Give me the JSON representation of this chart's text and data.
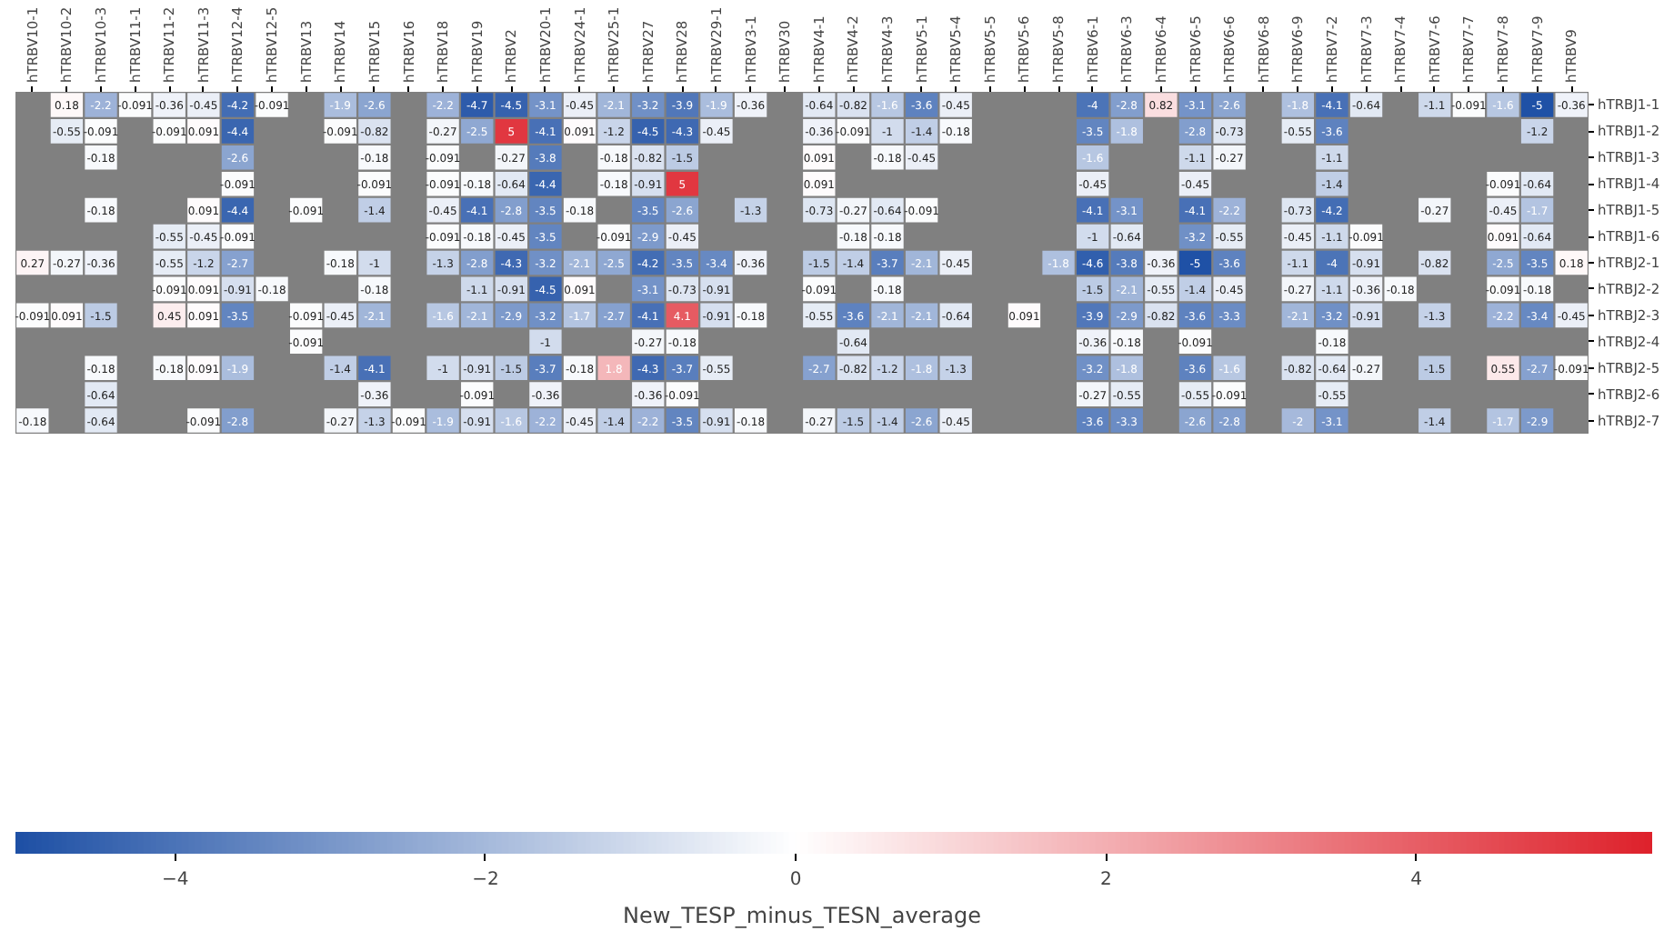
{
  "chart_data": {
    "type": "heatmap",
    "clabel": "New_TESP_minus_TESN_average",
    "categories": [
      "hTRBV10-1",
      "hTRBV10-2",
      "hTRBV10-3",
      "hTRBV11-1",
      "hTRBV11-2",
      "hTRBV11-3",
      "hTRBV12-4",
      "hTRBV12-5",
      "hTRBV13",
      "hTRBV14",
      "hTRBV15",
      "hTRBV16",
      "hTRBV18",
      "hTRBV19",
      "hTRBV2",
      "hTRBV20-1",
      "hTRBV24-1",
      "hTRBV25-1",
      "hTRBV27",
      "hTRBV28",
      "hTRBV29-1",
      "hTRBV3-1",
      "hTRBV30",
      "hTRBV4-1",
      "hTRBV4-2",
      "hTRBV4-3",
      "hTRBV5-1",
      "hTRBV5-4",
      "hTRBV5-5",
      "hTRBV5-6",
      "hTRBV5-8",
      "hTRBV6-1",
      "hTRBV6-3",
      "hTRBV6-4",
      "hTRBV6-5",
      "hTRBV6-6",
      "hTRBV6-8",
      "hTRBV6-9",
      "hTRBV7-2",
      "hTRBV7-3",
      "hTRBV7-4",
      "hTRBV7-6",
      "hTRBV7-7",
      "hTRBV7-8",
      "hTRBV7-9",
      "hTRBV9"
    ],
    "y_categories": [
      "hTRBJ1-1",
      "hTRBJ1-2",
      "hTRBJ1-3",
      "hTRBJ1-4",
      "hTRBJ1-5",
      "hTRBJ1-6",
      "hTRBJ2-1",
      "hTRBJ2-2",
      "hTRBJ2-3",
      "hTRBJ2-4",
      "hTRBJ2-5",
      "hTRBJ2-6",
      "hTRBJ2-7"
    ],
    "cells": [
      [
        null,
        0.18,
        -2.2,
        -0.091,
        -0.36,
        -0.45,
        -4.2,
        -0.091,
        null,
        -1.9,
        -2.6,
        null,
        -2.2,
        -4.7,
        -4.5,
        -3.1,
        -0.45,
        -2.1,
        -3.2,
        -3.9,
        -1.9,
        -0.36,
        null,
        -0.64,
        -0.82,
        -1.6,
        -3.6,
        -0.45,
        null,
        null,
        null,
        -4,
        -2.8,
        0.82,
        -3.1,
        -2.6,
        null,
        -1.8,
        -4.1,
        -0.64,
        null,
        -1.1,
        -0.091,
        -1.6,
        -5,
        -0.36
      ],
      [
        null,
        -0.55,
        -0.091,
        null,
        -0.091,
        0.091,
        -4.4,
        null,
        null,
        -0.091,
        -0.82,
        null,
        -0.27,
        -2.5,
        5,
        -4.1,
        0.091,
        -1.2,
        -4.5,
        -4.3,
        -0.45,
        null,
        null,
        -0.36,
        -0.091,
        -1,
        -1.4,
        -0.18,
        null,
        null,
        null,
        -3.5,
        -1.8,
        null,
        -2.8,
        -0.73,
        null,
        -0.55,
        -3.6,
        null,
        null,
        null,
        null,
        null,
        -1.2,
        null
      ],
      [
        null,
        null,
        -0.18,
        null,
        null,
        null,
        -2.6,
        null,
        null,
        null,
        -0.18,
        null,
        -0.091,
        null,
        -0.27,
        -3.8,
        null,
        -0.18,
        -0.82,
        -1.5,
        null,
        null,
        null,
        0.091,
        null,
        -0.18,
        -0.45,
        null,
        null,
        null,
        null,
        -1.6,
        null,
        null,
        -1.1,
        -0.27,
        null,
        null,
        -1.1,
        null,
        null,
        null,
        null,
        null,
        null,
        null
      ],
      [
        null,
        null,
        null,
        null,
        null,
        null,
        -0.091,
        null,
        null,
        null,
        -0.091,
        null,
        -0.091,
        -0.18,
        -0.64,
        -4.4,
        null,
        -0.18,
        -0.91,
        5,
        null,
        null,
        null,
        0.091,
        null,
        null,
        null,
        null,
        null,
        null,
        null,
        -0.45,
        null,
        null,
        -0.45,
        null,
        null,
        null,
        -1.4,
        null,
        null,
        null,
        null,
        -0.091,
        -0.64,
        null
      ],
      [
        null,
        null,
        -0.18,
        null,
        null,
        0.091,
        -4.4,
        null,
        -0.091,
        null,
        -1.4,
        null,
        -0.45,
        -4.1,
        -2.8,
        -3.5,
        -0.18,
        null,
        -3.5,
        -2.6,
        null,
        -1.3,
        null,
        -0.73,
        -0.27,
        -0.64,
        -0.091,
        null,
        null,
        null,
        null,
        -4.1,
        -3.1,
        null,
        -4.1,
        -2.2,
        null,
        -0.73,
        -4.2,
        null,
        null,
        -0.27,
        null,
        -0.45,
        -1.7,
        null
      ],
      [
        null,
        null,
        null,
        null,
        -0.55,
        -0.45,
        -0.091,
        null,
        null,
        null,
        null,
        null,
        -0.091,
        -0.18,
        -0.45,
        -3.5,
        null,
        -0.091,
        -2.9,
        -0.45,
        null,
        null,
        null,
        null,
        -0.18,
        -0.18,
        null,
        null,
        null,
        null,
        null,
        -1,
        -0.64,
        null,
        -3.2,
        -0.55,
        null,
        -0.45,
        -1.1,
        -0.091,
        null,
        null,
        null,
        0.091,
        -0.64,
        null
      ],
      [
        0.27,
        -0.27,
        -0.36,
        null,
        -0.55,
        -1.2,
        -2.7,
        null,
        null,
        -0.18,
        -1,
        null,
        -1.3,
        -2.8,
        -4.3,
        -3.2,
        -2.1,
        -2.5,
        -4.2,
        -3.5,
        -3.4,
        -0.36,
        null,
        -1.5,
        -1.4,
        -3.7,
        -2.1,
        -0.45,
        null,
        null,
        -1.8,
        -4.6,
        -3.8,
        -0.36,
        -5,
        -3.6,
        null,
        -1.1,
        -4,
        -0.91,
        null,
        -0.82,
        null,
        -2.5,
        -3.5,
        0.18
      ],
      [
        null,
        null,
        null,
        null,
        -0.091,
        0.091,
        -0.91,
        -0.18,
        null,
        null,
        -0.18,
        null,
        null,
        -1.1,
        -0.91,
        -4.5,
        0.091,
        null,
        -3.1,
        -0.73,
        -0.91,
        null,
        null,
        -0.091,
        null,
        -0.18,
        null,
        null,
        null,
        null,
        null,
        -1.5,
        -2.1,
        -0.55,
        -1.4,
        -0.45,
        null,
        -0.27,
        -1.1,
        -0.36,
        -0.18,
        null,
        null,
        -0.091,
        -0.18,
        null
      ],
      [
        -0.091,
        0.091,
        -1.5,
        null,
        0.45,
        0.091,
        -3.5,
        null,
        -0.091,
        -0.45,
        -2.1,
        null,
        -1.6,
        -2.1,
        -2.9,
        -3.2,
        -1.7,
        -2.7,
        -4.1,
        4.1,
        -0.91,
        -0.18,
        null,
        -0.55,
        -3.6,
        -2.1,
        -2.1,
        -0.64,
        null,
        0.091,
        null,
        -3.9,
        -2.9,
        -0.82,
        -3.6,
        -3.3,
        null,
        -2.1,
        -3.2,
        -0.91,
        null,
        -1.3,
        null,
        -2.2,
        -3.4,
        -0.45
      ],
      [
        null,
        null,
        null,
        null,
        null,
        null,
        null,
        null,
        -0.091,
        null,
        null,
        null,
        null,
        null,
        null,
        -1,
        null,
        null,
        -0.27,
        -0.18,
        null,
        null,
        null,
        null,
        -0.64,
        null,
        null,
        null,
        null,
        null,
        null,
        -0.36,
        -0.18,
        null,
        -0.091,
        null,
        null,
        null,
        -0.18,
        null,
        null,
        null,
        null,
        null,
        null,
        null
      ],
      [
        null,
        null,
        -0.18,
        null,
        -0.18,
        0.091,
        -1.9,
        null,
        null,
        -1.4,
        -4.1,
        null,
        -1,
        -0.91,
        -1.5,
        -3.7,
        -0.18,
        1.8,
        -4.3,
        -3.7,
        -0.55,
        null,
        null,
        -2.7,
        -0.82,
        -1.2,
        -1.8,
        -1.3,
        null,
        null,
        null,
        -3.2,
        -1.8,
        null,
        -3.6,
        -1.6,
        null,
        -0.82,
        -0.64,
        -0.27,
        null,
        -1.5,
        null,
        0.55,
        -2.7,
        -0.091
      ],
      [
        null,
        null,
        -0.64,
        null,
        null,
        null,
        null,
        null,
        null,
        null,
        -0.36,
        null,
        null,
        -0.091,
        null,
        -0.36,
        null,
        null,
        -0.36,
        -0.091,
        null,
        null,
        null,
        null,
        null,
        null,
        null,
        null,
        null,
        null,
        null,
        -0.27,
        -0.55,
        null,
        -0.55,
        -0.091,
        null,
        null,
        -0.55,
        null,
        null,
        null,
        null,
        null,
        null,
        null
      ],
      [
        -0.18,
        null,
        -0.64,
        null,
        null,
        -0.091,
        -2.8,
        null,
        null,
        -0.27,
        -1.3,
        -0.091,
        -1.9,
        -0.91,
        -1.6,
        -2.2,
        -0.45,
        -1.4,
        -2.2,
        -3.5,
        -0.91,
        -0.18,
        null,
        -0.27,
        -1.5,
        -1.4,
        -2.6,
        -0.45,
        null,
        null,
        null,
        -3.6,
        -3.3,
        null,
        -2.6,
        -2.8,
        null,
        -2,
        -3.1,
        null,
        null,
        -1.4,
        null,
        -1.7,
        -2.9,
        null
      ]
    ],
    "data_labels": true,
    "clim": [
      -5.03,
      5.52
    ],
    "cticks": [
      {
        "value": -4,
        "label": "−4"
      },
      {
        "value": -2,
        "label": "−2"
      },
      0,
      2,
      4
    ]
  }
}
